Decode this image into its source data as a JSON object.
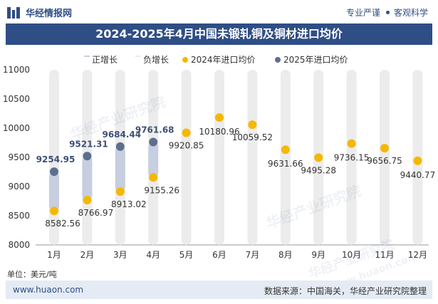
{
  "header": {
    "brand": "华经情报网",
    "slogan_left": "专业严谨",
    "slogan_right": "客观科学"
  },
  "title": "2024-2025年4月中国未锻轧铜及铜材进口均价",
  "footer": {
    "unit": "单位：美元/吨",
    "url": "www.huaon.com",
    "source": "数据来源：中国海关，华经产业研究院整理"
  },
  "watermarks": [
    "华经产业研究院",
    "www.huaon.com"
  ],
  "colors": {
    "brand": "#2f4e86",
    "pos_bar": "#c7cee0",
    "bg_bar": "#ececec",
    "dot2024": "#f5b800",
    "dot2025": "#5d6f8f"
  },
  "chart_data": {
    "type": "line",
    "title": "2024-2025年4月中国未锻轧铜及铜材进口均价",
    "categories": [
      "1月",
      "2月",
      "3月",
      "4月",
      "5月",
      "6月",
      "7月",
      "8月",
      "9月",
      "10月",
      "11月",
      "12月"
    ],
    "series": [
      {
        "name": "2024年进口均价",
        "values": [
          8582.56,
          8766.97,
          8913.02,
          9155.26,
          9920.85,
          10180.96,
          10059.52,
          9631.66,
          9495.28,
          9736.15,
          9656.75,
          9440.77
        ]
      },
      {
        "name": "2025年进口均价",
        "values": [
          9254.95,
          9521.31,
          9684.44,
          9761.68,
          null,
          null,
          null,
          null,
          null,
          null,
          null,
          null
        ]
      }
    ],
    "legend": [
      "正增长",
      "负增长",
      "2024年进口均价",
      "2025年进口均价"
    ],
    "legend_position": "top",
    "ylim": [
      8000,
      11000
    ],
    "yticks": [
      8000,
      8500,
      9000,
      9500,
      10000,
      10500,
      11000
    ],
    "xlabel": "",
    "ylabel": "美元/吨"
  }
}
